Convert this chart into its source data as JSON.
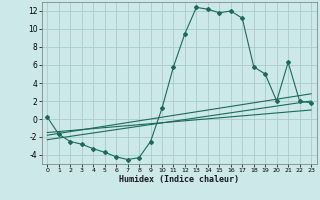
{
  "xlabel": "Humidex (Indice chaleur)",
  "bg_color": "#cce8e8",
  "grid_color": "#aacccc",
  "line_color": "#1a6b5a",
  "curve_x": [
    0,
    1,
    2,
    3,
    4,
    5,
    6,
    7,
    8,
    9,
    10,
    11,
    12,
    13,
    14,
    15,
    16,
    17,
    18,
    19,
    20,
    21,
    22,
    23
  ],
  "curve_y": [
    0.2,
    -1.7,
    -2.5,
    -2.8,
    -3.3,
    -3.7,
    -4.2,
    -4.5,
    -4.3,
    -2.5,
    1.2,
    5.8,
    9.5,
    12.4,
    12.2,
    11.8,
    12.0,
    11.2,
    5.8,
    5.0,
    2.0,
    6.3,
    2.0,
    1.8
  ],
  "line1_x": [
    0,
    23
  ],
  "line1_y": [
    -2.3,
    2.0
  ],
  "line2_x": [
    0,
    23
  ],
  "line2_y": [
    -1.8,
    2.8
  ],
  "line3_x": [
    0,
    23
  ],
  "line3_y": [
    -1.5,
    1.0
  ],
  "xlim": [
    -0.5,
    23.5
  ],
  "ylim": [
    -5,
    13
  ],
  "yticks": [
    -4,
    -2,
    0,
    2,
    4,
    6,
    8,
    10,
    12
  ],
  "xticks": [
    0,
    1,
    2,
    3,
    4,
    5,
    6,
    7,
    8,
    9,
    10,
    11,
    12,
    13,
    14,
    15,
    16,
    17,
    18,
    19,
    20,
    21,
    22,
    23
  ]
}
